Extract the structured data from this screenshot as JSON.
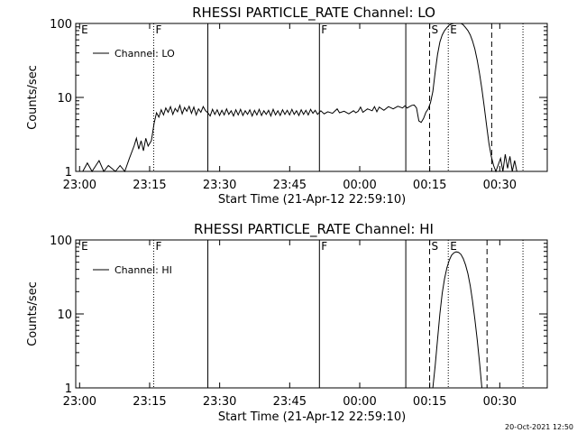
{
  "footer": {
    "timestamp": "20-Oct-2021 12:50"
  },
  "chart_data": [
    {
      "type": "line",
      "title": "RHESSI PARTICLE_RATE Channel: LO",
      "xlabel": "Start Time (21-Apr-12 22:59:10)",
      "ylabel": "Counts/sec",
      "x_tick_labels": [
        "23:00",
        "23:15",
        "23:30",
        "23:45",
        "00:00",
        "00:15",
        "00:30"
      ],
      "y_tick_labels": [
        "1",
        "10",
        "100"
      ],
      "yscale": "log",
      "ylim": [
        1,
        100
      ],
      "x_unit": "minutes after 22:59:10",
      "xlim": [
        0,
        101
      ],
      "legend": {
        "entries": [
          "Channel: LO"
        ],
        "position": "top-left"
      },
      "region_markers": [
        {
          "label": "E",
          "x": 0.8,
          "style": "none"
        },
        {
          "label": "F",
          "x": 16.7,
          "style": "dotted"
        },
        {
          "label": "",
          "x": 28.3,
          "style": "solid"
        },
        {
          "label": "F",
          "x": 52.2,
          "style": "solid"
        },
        {
          "label": "",
          "x": 70.7,
          "style": "solid"
        },
        {
          "label": "S",
          "x": 75.8,
          "style": "dashed"
        },
        {
          "label": "E",
          "x": 79.8,
          "style": "dotted"
        },
        {
          "label": "",
          "x": 89.1,
          "style": "dashed"
        },
        {
          "label": "",
          "x": 95.8,
          "style": "dotted"
        }
      ],
      "series": [
        {
          "points": [
            [
              1.5,
              1
            ],
            [
              2.5,
              1.3
            ],
            [
              3.5,
              1
            ],
            [
              5.0,
              1.4
            ],
            [
              6.0,
              1
            ],
            [
              7.0,
              1.2
            ],
            [
              8.5,
              1
            ],
            [
              9.5,
              1.2
            ],
            [
              10.5,
              1
            ],
            [
              11.5,
              1.5
            ],
            [
              12.5,
              2.2
            ],
            [
              13.0,
              2.8
            ],
            [
              13.5,
              2.0
            ],
            [
              14.0,
              2.6
            ],
            [
              14.5,
              1.9
            ],
            [
              15.0,
              2.8
            ],
            [
              15.5,
              2.2
            ],
            [
              16.2,
              2.6
            ],
            [
              16.8,
              4.5
            ],
            [
              17.3,
              6.2
            ],
            [
              17.8,
              5.4
            ],
            [
              18.3,
              6.8
            ],
            [
              18.8,
              5.8
            ],
            [
              19.3,
              7.2
            ],
            [
              19.8,
              6.3
            ],
            [
              20.3,
              7.5
            ],
            [
              20.8,
              5.9
            ],
            [
              21.3,
              7.1
            ],
            [
              21.8,
              6.4
            ],
            [
              22.3,
              7.8
            ],
            [
              22.8,
              6.0
            ],
            [
              23.3,
              7.3
            ],
            [
              23.8,
              6.5
            ],
            [
              24.3,
              7.6
            ],
            [
              24.8,
              6.1
            ],
            [
              25.3,
              7.4
            ],
            [
              25.8,
              5.8
            ],
            [
              26.3,
              7.0
            ],
            [
              26.8,
              6.3
            ],
            [
              27.3,
              7.5
            ],
            [
              27.8,
              6.6
            ],
            [
              28.3,
              6.2
            ],
            [
              28.8,
              5.6
            ],
            [
              29.3,
              6.9
            ],
            [
              29.8,
              5.9
            ],
            [
              30.3,
              6.8
            ],
            [
              30.8,
              5.7
            ],
            [
              31.3,
              6.7
            ],
            [
              31.8,
              5.8
            ],
            [
              32.3,
              7.0
            ],
            [
              32.8,
              5.9
            ],
            [
              33.3,
              6.6
            ],
            [
              33.8,
              5.6
            ],
            [
              34.3,
              6.8
            ],
            [
              34.8,
              5.8
            ],
            [
              35.3,
              6.9
            ],
            [
              35.8,
              5.7
            ],
            [
              36.3,
              6.6
            ],
            [
              36.8,
              5.9
            ],
            [
              37.3,
              6.8
            ],
            [
              37.8,
              5.6
            ],
            [
              38.3,
              6.7
            ],
            [
              38.8,
              5.8
            ],
            [
              39.3,
              6.9
            ],
            [
              39.8,
              5.7
            ],
            [
              40.3,
              6.6
            ],
            [
              40.8,
              5.9
            ],
            [
              41.3,
              6.7
            ],
            [
              41.8,
              5.6
            ],
            [
              42.3,
              6.9
            ],
            [
              42.8,
              5.8
            ],
            [
              43.3,
              6.6
            ],
            [
              43.8,
              5.7
            ],
            [
              44.3,
              6.8
            ],
            [
              44.8,
              5.9
            ],
            [
              45.3,
              6.7
            ],
            [
              45.8,
              5.8
            ],
            [
              46.3,
              6.9
            ],
            [
              46.8,
              5.9
            ],
            [
              47.3,
              6.6
            ],
            [
              47.8,
              5.7
            ],
            [
              48.3,
              6.8
            ],
            [
              48.8,
              5.9
            ],
            [
              49.3,
              6.7
            ],
            [
              49.8,
              5.8
            ],
            [
              50.3,
              6.9
            ],
            [
              50.8,
              6.1
            ],
            [
              51.3,
              6.7
            ],
            [
              51.8,
              5.9
            ],
            [
              52.5,
              6.6
            ],
            [
              53.2,
              6.0
            ],
            [
              54.0,
              6.4
            ],
            [
              55.0,
              6.1
            ],
            [
              56.0,
              7.0
            ],
            [
              56.5,
              6.2
            ],
            [
              57.5,
              6.5
            ],
            [
              58.5,
              6.0
            ],
            [
              59.5,
              6.6
            ],
            [
              60.0,
              6.2
            ],
            [
              60.5,
              6.5
            ],
            [
              61.0,
              7.4
            ],
            [
              61.5,
              6.3
            ],
            [
              62.5,
              7.0
            ],
            [
              63.5,
              6.6
            ],
            [
              64.0,
              7.5
            ],
            [
              64.5,
              6.4
            ],
            [
              65.0,
              7.4
            ],
            [
              66.0,
              6.7
            ],
            [
              67.0,
              7.5
            ],
            [
              68.0,
              7.0
            ],
            [
              69.0,
              7.6
            ],
            [
              70.0,
              7.2
            ],
            [
              70.5,
              7.7
            ],
            [
              71.0,
              7.2
            ],
            [
              71.5,
              7.5
            ],
            [
              72.0,
              7.8
            ],
            [
              72.5,
              7.9
            ],
            [
              73.0,
              7.2
            ],
            [
              73.5,
              4.8
            ],
            [
              74.0,
              4.6
            ],
            [
              74.5,
              5.2
            ],
            [
              75.0,
              6.3
            ],
            [
              75.5,
              7.0
            ],
            [
              76.0,
              8.5
            ],
            [
              76.5,
              12
            ],
            [
              77.0,
              22
            ],
            [
              77.5,
              38
            ],
            [
              78.0,
              56
            ],
            [
              78.5,
              70
            ],
            [
              79.0,
              80
            ],
            [
              79.5,
              88
            ],
            [
              80.0,
              95
            ],
            [
              80.5,
              98
            ],
            [
              81.0,
              100
            ],
            [
              81.5,
              100
            ],
            [
              82.0,
              100
            ],
            [
              82.5,
              100
            ],
            [
              83.0,
              96
            ],
            [
              83.5,
              88
            ],
            [
              84.0,
              80
            ],
            [
              84.5,
              70
            ],
            [
              85.0,
              58
            ],
            [
              85.5,
              45
            ],
            [
              86.0,
              32
            ],
            [
              86.5,
              21
            ],
            [
              87.0,
              13
            ],
            [
              87.5,
              7.5
            ],
            [
              88.0,
              4.2
            ],
            [
              88.5,
              2.4
            ],
            [
              89.0,
              1.6
            ],
            [
              89.5,
              1.2
            ],
            [
              90.0,
              1
            ],
            [
              91.0,
              1.5
            ],
            [
              91.5,
              1
            ],
            [
              92.0,
              1.7
            ],
            [
              92.5,
              1.1
            ],
            [
              93.0,
              1.6
            ],
            [
              93.5,
              1
            ],
            [
              94.0,
              1.4
            ],
            [
              94.5,
              1
            ]
          ]
        }
      ]
    },
    {
      "type": "line",
      "title": "RHESSI PARTICLE_RATE Channel: HI",
      "xlabel": "Start Time (21-Apr-12 22:59:10)",
      "ylabel": "Counts/sec",
      "x_tick_labels": [
        "23:00",
        "23:15",
        "23:30",
        "23:45",
        "00:00",
        "00:15",
        "00:30"
      ],
      "y_tick_labels": [
        "1",
        "10",
        "100"
      ],
      "yscale": "log",
      "ylim": [
        1,
        100
      ],
      "x_unit": "minutes after 22:59:10",
      "xlim": [
        0,
        101
      ],
      "legend": {
        "entries": [
          "Channel: HI"
        ],
        "position": "top-left"
      },
      "region_markers": [
        {
          "label": "E",
          "x": 0.8,
          "style": "none"
        },
        {
          "label": "F",
          "x": 16.7,
          "style": "dotted"
        },
        {
          "label": "",
          "x": 28.3,
          "style": "solid"
        },
        {
          "label": "F",
          "x": 52.2,
          "style": "solid"
        },
        {
          "label": "",
          "x": 70.7,
          "style": "solid"
        },
        {
          "label": "S",
          "x": 75.8,
          "style": "dashed"
        },
        {
          "label": "E",
          "x": 79.8,
          "style": "dotted"
        },
        {
          "label": "",
          "x": 88.1,
          "style": "dashed"
        },
        {
          "label": "",
          "x": 95.8,
          "style": "dotted"
        }
      ],
      "series": [
        {
          "points": [
            [
              76.5,
              1
            ],
            [
              77.0,
              2.0
            ],
            [
              77.5,
              4.5
            ],
            [
              78.0,
              10
            ],
            [
              78.5,
              19
            ],
            [
              79.0,
              30
            ],
            [
              79.5,
              42
            ],
            [
              80.0,
              53
            ],
            [
              80.5,
              62
            ],
            [
              81.0,
              67
            ],
            [
              81.5,
              69
            ],
            [
              82.0,
              68
            ],
            [
              82.5,
              64
            ],
            [
              83.0,
              56
            ],
            [
              83.5,
              46
            ],
            [
              84.0,
              35
            ],
            [
              84.5,
              24
            ],
            [
              85.0,
              15
            ],
            [
              85.5,
              8.5
            ],
            [
              86.0,
              4.5
            ],
            [
              86.5,
              2.2
            ],
            [
              87.0,
              1
            ]
          ]
        }
      ]
    }
  ]
}
